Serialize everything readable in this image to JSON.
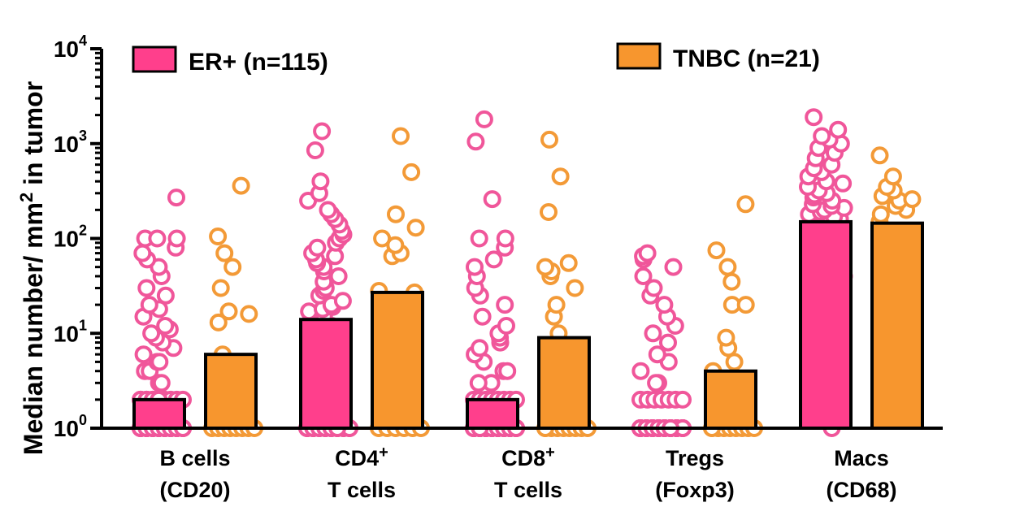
{
  "chart_data": {
    "type": "bar",
    "ylabel_main": "Median number/ mm",
    "ylabel_sup": "2",
    "ylabel_tail": " in tumor",
    "yscale": "log",
    "ylim": [
      1,
      10000
    ],
    "yticks": [
      {
        "base": "10",
        "exp": "0"
      },
      {
        "base": "10",
        "exp": "1"
      },
      {
        "base": "10",
        "exp": "2"
      },
      {
        "base": "10",
        "exp": "3"
      },
      {
        "base": "10",
        "exp": "4"
      }
    ],
    "categories": [
      {
        "line1": "B cells",
        "line1_sup": "",
        "line2": "(CD20)"
      },
      {
        "line1": "CD4",
        "line1_sup": "+",
        "line2": "T cells"
      },
      {
        "line1": "CD8",
        "line1_sup": "+",
        "line2": "T cells"
      },
      {
        "line1": "Tregs",
        "line1_sup": "",
        "line2": "(Foxp3)"
      },
      {
        "line1": "Macs",
        "line1_sup": "",
        "line2": "(CD68)"
      }
    ],
    "series": [
      {
        "name": "ER+ (n=115)",
        "color": "#ff3f8c",
        "point_color": "#f0569a",
        "values": [
          2,
          14,
          2,
          1,
          150
        ],
        "points": [
          [
            1,
            1,
            1,
            1,
            1,
            1,
            1,
            1,
            1,
            1,
            1,
            1,
            1,
            1,
            1,
            1,
            1,
            1,
            1,
            1,
            1,
            1,
            1,
            1,
            1,
            1,
            1,
            1,
            1,
            1,
            1,
            1,
            1,
            1,
            1,
            1,
            1,
            1,
            1,
            1,
            2,
            2,
            2,
            2,
            2,
            2,
            2,
            2,
            2,
            2,
            2,
            2,
            3,
            3,
            4,
            4,
            5,
            5,
            6,
            7,
            8,
            9,
            10,
            11,
            12,
            15,
            18,
            20,
            25,
            30,
            40,
            50,
            60,
            70,
            80,
            100,
            100,
            100,
            270
          ],
          [
            1,
            1,
            1,
            1,
            1,
            1,
            1,
            1,
            1,
            1,
            1,
            1,
            1,
            1,
            1,
            1,
            1,
            1,
            1,
            1,
            1,
            1,
            2,
            2,
            3,
            4,
            5,
            6,
            7,
            8,
            9,
            10,
            11,
            12,
            13,
            14,
            15,
            16,
            17,
            18,
            19,
            20,
            22,
            25,
            28,
            30,
            35,
            40,
            45,
            50,
            55,
            60,
            65,
            70,
            80,
            90,
            100,
            110,
            120,
            140,
            160,
            180,
            200,
            250,
            300,
            400,
            850,
            1350
          ],
          [
            1,
            1,
            1,
            1,
            1,
            1,
            1,
            1,
            1,
            1,
            1,
            1,
            1,
            1,
            1,
            1,
            1,
            1,
            1,
            1,
            1,
            1,
            1,
            1,
            1,
            1,
            1,
            1,
            1,
            1,
            1,
            1,
            1,
            1,
            1,
            1,
            1,
            1,
            1,
            1,
            1,
            1,
            2,
            2,
            2,
            2,
            2,
            2,
            2,
            2,
            3,
            3,
            4,
            4,
            5,
            6,
            7,
            8,
            9,
            10,
            12,
            15,
            20,
            25,
            30,
            40,
            50,
            60,
            80,
            100,
            100,
            260,
            1050,
            1800
          ],
          [
            1,
            1,
            1,
            1,
            1,
            1,
            1,
            1,
            1,
            1,
            1,
            1,
            1,
            1,
            1,
            1,
            1,
            1,
            1,
            1,
            1,
            1,
            1,
            1,
            1,
            1,
            1,
            1,
            1,
            1,
            1,
            1,
            1,
            1,
            1,
            1,
            1,
            1,
            1,
            1,
            1,
            1,
            1,
            1,
            1,
            1,
            2,
            2,
            2,
            2,
            2,
            2,
            2,
            3,
            3,
            4,
            5,
            6,
            8,
            10,
            12,
            15,
            20,
            25,
            30,
            40,
            50,
            60,
            65,
            70
          ],
          [
            1,
            6,
            7,
            8,
            10,
            12,
            13,
            15,
            18,
            20,
            25,
            30,
            35,
            40,
            50,
            55,
            60,
            70,
            80,
            90,
            100,
            110,
            120,
            130,
            140,
            150,
            160,
            170,
            180,
            190,
            200,
            210,
            220,
            230,
            250,
            270,
            290,
            300,
            320,
            350,
            380,
            400,
            450,
            500,
            550,
            600,
            700,
            800,
            900,
            1000,
            1100,
            1200,
            1400,
            1900
          ]
        ]
      },
      {
        "name": "TNBC (n=21)",
        "color": "#f7962e",
        "point_color": "#f39a37",
        "values": [
          6,
          27,
          9,
          4,
          145
        ],
        "points": [
          [
            1,
            1,
            1,
            1,
            1,
            1,
            1,
            1,
            2,
            2,
            4,
            5,
            6,
            13,
            16,
            17,
            30,
            50,
            70,
            105,
            360
          ],
          [
            1,
            1,
            1,
            1,
            1,
            1,
            2,
            5,
            17,
            27,
            28,
            65,
            70,
            85,
            100,
            130,
            180,
            500,
            1200
          ],
          [
            1,
            1,
            1,
            1,
            1,
            1,
            1,
            1,
            1,
            2,
            2,
            10,
            15,
            20,
            30,
            40,
            45,
            50,
            55,
            190,
            450,
            1100
          ],
          [
            1,
            1,
            1,
            1,
            1,
            1,
            1,
            1,
            1,
            2,
            4,
            5,
            7,
            9,
            20,
            20,
            35,
            50,
            75,
            230
          ],
          [
            6,
            7,
            9,
            10,
            13,
            17,
            20,
            25,
            30,
            55,
            100,
            150,
            180,
            200,
            220,
            250,
            260,
            280,
            320,
            350,
            450,
            750
          ]
        ]
      }
    ],
    "legend_position": "top"
  }
}
